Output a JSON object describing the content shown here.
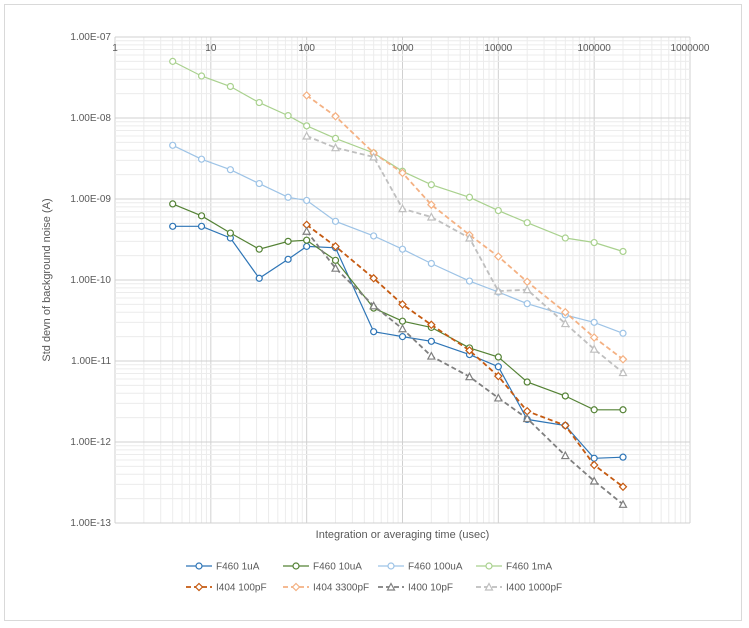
{
  "chart_data": {
    "type": "line",
    "title": "",
    "xlabel": "Integration or averaging time (usec)",
    "ylabel": "Std devn of background noise (A)",
    "x_scale": "log",
    "y_scale": "log",
    "xlim": [
      1,
      1000000
    ],
    "ylim": [
      1e-13,
      1e-07
    ],
    "x_tick_labels": [
      "1",
      "10",
      "100",
      "1000",
      "10000",
      "100000",
      "1000000"
    ],
    "y_tick_labels": [
      "1.00E-07",
      "1.00E-08",
      "1.00E-09",
      "1.00E-10",
      "1.00E-11",
      "1.00E-12",
      "1.00E-13"
    ],
    "grid": true,
    "legend_position": "bottom",
    "series": [
      {
        "name": "F460 1uA",
        "color": "#2e75b6",
        "dash": "solid",
        "marker": "circle",
        "x": [
          4,
          8,
          16,
          32,
          64,
          100,
          200,
          500,
          1000,
          2000,
          5000,
          10000,
          20000,
          50000,
          100000,
          200000
        ],
        "y": [
          4.6e-10,
          4.6e-10,
          3.3e-10,
          1.05e-10,
          1.8e-10,
          2.6e-10,
          2.5e-10,
          2.3e-11,
          2e-11,
          1.75e-11,
          1.2e-11,
          8.5e-12,
          1.9e-12,
          1.6e-12,
          6.3e-13,
          6.5e-13
        ]
      },
      {
        "name": "F460 10uA",
        "color": "#548235",
        "dash": "solid",
        "marker": "circle",
        "x": [
          4,
          8,
          16,
          32,
          64,
          100,
          200,
          500,
          1000,
          2000,
          5000,
          10000,
          20000,
          50000,
          100000,
          200000
        ],
        "y": [
          8.7e-10,
          6.2e-10,
          3.8e-10,
          2.4e-10,
          3e-10,
          3.1e-10,
          1.75e-10,
          4.5e-11,
          3.1e-11,
          2.6e-11,
          1.45e-11,
          1.12e-11,
          5.5e-12,
          3.7e-12,
          2.5e-12,
          2.5e-12
        ]
      },
      {
        "name": "F460 100uA",
        "color": "#9dc3e6",
        "dash": "solid",
        "marker": "circle",
        "x": [
          4,
          8,
          16,
          32,
          64,
          100,
          200,
          500,
          1000,
          2000,
          5000,
          10000,
          20000,
          50000,
          100000,
          200000
        ],
        "y": [
          4.6e-09,
          3.1e-09,
          2.3e-09,
          1.55e-09,
          1.05e-09,
          9.6e-10,
          5.3e-10,
          3.5e-10,
          2.4e-10,
          1.6e-10,
          9.7e-11,
          7.1e-11,
          5.1e-11,
          3.7e-11,
          3e-11,
          2.2e-11
        ]
      },
      {
        "name": "F460 1mA",
        "color": "#a9d18e",
        "dash": "solid",
        "marker": "circle",
        "x": [
          4,
          8,
          16,
          32,
          64,
          100,
          200,
          500,
          1000,
          2000,
          5000,
          10000,
          20000,
          50000,
          100000,
          200000
        ],
        "y": [
          5e-08,
          3.3e-08,
          2.45e-08,
          1.55e-08,
          1.07e-08,
          8e-09,
          5.6e-09,
          3.7e-09,
          2.2e-09,
          1.5e-09,
          1.05e-09,
          7.2e-10,
          5.1e-10,
          3.3e-10,
          2.9e-10,
          2.25e-10
        ]
      },
      {
        "name": "I404 100pF",
        "color": "#c55a11",
        "dash": "dashed",
        "marker": "diamond",
        "x": [
          100,
          200,
          500,
          1000,
          2000,
          5000,
          10000,
          20000,
          50000,
          100000,
          200000
        ],
        "y": [
          4.8e-10,
          2.6e-10,
          1.05e-10,
          5e-11,
          2.8e-11,
          1.35e-11,
          6.5e-12,
          2.4e-12,
          1.6e-12,
          5.2e-13,
          2.8e-13
        ]
      },
      {
        "name": "I404 3300pF",
        "color": "#f4b183",
        "dash": "dashed",
        "marker": "diamond",
        "x": [
          100,
          200,
          500,
          1000,
          2000,
          5000,
          10000,
          20000,
          50000,
          100000,
          200000
        ],
        "y": [
          1.9e-08,
          1.05e-08,
          3.7e-09,
          2.1e-09,
          8.5e-10,
          3.6e-10,
          1.95e-10,
          9.5e-11,
          4e-11,
          1.95e-11,
          1.05e-11
        ]
      },
      {
        "name": "I400 10pF",
        "color": "#7f7f7f",
        "dash": "dashed",
        "marker": "triangle",
        "x": [
          100,
          200,
          500,
          1000,
          2000,
          5000,
          10000,
          20000,
          50000,
          100000,
          200000
        ],
        "y": [
          4e-10,
          1.4e-10,
          4.8e-11,
          2.5e-11,
          1.15e-11,
          6.4e-12,
          3.5e-12,
          1.95e-12,
          6.8e-13,
          3.3e-13,
          1.7e-13
        ]
      },
      {
        "name": "I400 1000pF",
        "color": "#bfbfbf",
        "dash": "dashed",
        "marker": "triangle",
        "x": [
          100,
          200,
          500,
          1000,
          2000,
          5000,
          10000,
          20000,
          50000,
          100000,
          200000
        ],
        "y": [
          6e-09,
          4.3e-09,
          3.3e-09,
          7.6e-10,
          6e-10,
          3.3e-10,
          7.3e-11,
          7.6e-11,
          2.9e-11,
          1.4e-11,
          7.2e-12
        ]
      }
    ]
  }
}
